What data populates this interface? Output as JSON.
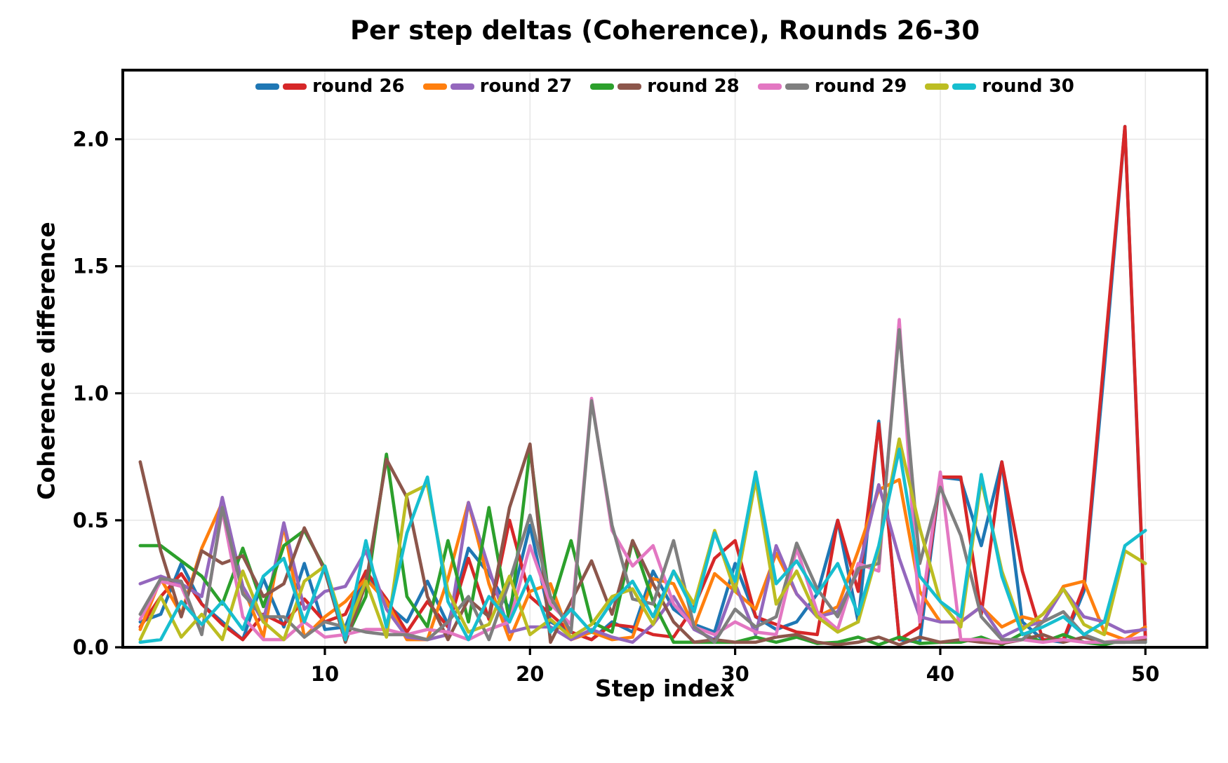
{
  "figure": {
    "title": "Per step deltas (Coherence), Rounds 26-30",
    "xlabel": "Step index",
    "ylabel": "Coherence difference"
  },
  "chart_data": {
    "type": "line",
    "title": "Per step deltas (Coherence), Rounds 26-30",
    "xlabel": "Step index",
    "ylabel": "Coherence difference",
    "grid": true,
    "legend_position": "upper center, single row, frameless",
    "x_ticks": [
      10,
      20,
      30,
      40,
      50
    ],
    "y_ticks": [
      0.0,
      0.5,
      1.0,
      1.5,
      2.0
    ],
    "xlim": [
      0.15,
      53.0
    ],
    "ylim": [
      0.0,
      2.272
    ],
    "x_start_step": 1,
    "x_end_step": 50,
    "legend": [
      {
        "label": "round 26",
        "colors": [
          "#1f77b4",
          "#d62728"
        ]
      },
      {
        "label": "round 27",
        "colors": [
          "#ff7f0e",
          "#9467bd"
        ]
      },
      {
        "label": "round 28",
        "colors": [
          "#2ca02c",
          "#8c564b"
        ]
      },
      {
        "label": "round 29",
        "colors": [
          "#e377c2",
          "#7f7f7f"
        ]
      },
      {
        "label": "round 30",
        "colors": [
          "#bcbd22",
          "#17becf"
        ]
      }
    ],
    "series": [
      {
        "name": "round 26 line a",
        "color": "#1f77b4",
        "values": [
          0.1,
          0.13,
          0.33,
          0.17,
          0.1,
          0.03,
          0.27,
          0.08,
          0.33,
          0.07,
          0.08,
          0.29,
          0.17,
          0.1,
          0.26,
          0.09,
          0.39,
          0.29,
          0.15,
          0.48,
          0.1,
          0.06,
          0.03,
          0.1,
          0.06,
          0.3,
          0.15,
          0.09,
          0.06,
          0.33,
          0.12,
          0.07,
          0.1,
          0.21,
          0.5,
          0.1,
          0.89,
          0.03,
          0.02,
          0.67,
          0.66,
          0.4,
          0.73,
          0.1,
          0.03,
          0.02,
          0.22,
          1.1,
          2.05,
          0.02
        ]
      },
      {
        "name": "round 26 line b",
        "color": "#d62728",
        "values": [
          0.08,
          0.2,
          0.29,
          0.17,
          0.09,
          0.03,
          0.13,
          0.09,
          0.19,
          0.1,
          0.13,
          0.3,
          0.19,
          0.06,
          0.18,
          0.08,
          0.35,
          0.11,
          0.5,
          0.2,
          0.13,
          0.06,
          0.03,
          0.09,
          0.08,
          0.05,
          0.04,
          0.16,
          0.35,
          0.42,
          0.12,
          0.09,
          0.06,
          0.05,
          0.5,
          0.22,
          0.88,
          0.03,
          0.08,
          0.67,
          0.67,
          0.13,
          0.73,
          0.3,
          0.03,
          0.03,
          0.24,
          1.15,
          2.05,
          0.04
        ]
      },
      {
        "name": "round 27 line a",
        "color": "#ff7f0e",
        "values": [
          0.07,
          0.27,
          0.13,
          0.39,
          0.57,
          0.24,
          0.04,
          0.48,
          0.04,
          0.12,
          0.18,
          0.27,
          0.18,
          0.03,
          0.03,
          0.27,
          0.57,
          0.25,
          0.03,
          0.22,
          0.25,
          0.03,
          0.06,
          0.03,
          0.04,
          0.27,
          0.25,
          0.08,
          0.29,
          0.22,
          0.15,
          0.37,
          0.21,
          0.12,
          0.16,
          0.38,
          0.62,
          0.66,
          0.22,
          0.1,
          0.1,
          0.16,
          0.08,
          0.12,
          0.1,
          0.24,
          0.26,
          0.06,
          0.03,
          0.08
        ]
      },
      {
        "name": "round 27 line b",
        "color": "#9467bd",
        "values": [
          0.25,
          0.28,
          0.25,
          0.2,
          0.59,
          0.24,
          0.1,
          0.49,
          0.15,
          0.22,
          0.24,
          0.38,
          0.15,
          0.04,
          0.03,
          0.05,
          0.57,
          0.31,
          0.06,
          0.08,
          0.08,
          0.03,
          0.07,
          0.04,
          0.02,
          0.09,
          0.2,
          0.07,
          0.03,
          0.25,
          0.05,
          0.4,
          0.21,
          0.12,
          0.14,
          0.3,
          0.64,
          0.35,
          0.12,
          0.1,
          0.1,
          0.16,
          0.04,
          0.08,
          0.1,
          0.23,
          0.12,
          0.1,
          0.06,
          0.07
        ]
      },
      {
        "name": "round 28 line a",
        "color": "#2ca02c",
        "values": [
          0.4,
          0.4,
          0.34,
          0.28,
          0.17,
          0.39,
          0.16,
          0.4,
          0.46,
          0.31,
          0.03,
          0.2,
          0.76,
          0.2,
          0.08,
          0.42,
          0.1,
          0.55,
          0.1,
          0.78,
          0.15,
          0.42,
          0.1,
          0.06,
          0.42,
          0.18,
          0.02,
          0.02,
          0.02,
          0.02,
          0.04,
          0.02,
          0.04,
          0.015,
          0.02,
          0.04,
          0.01,
          0.04,
          0.015,
          0.02,
          0.02,
          0.04,
          0.01,
          0.055,
          0.02,
          0.05,
          0.02,
          0.01,
          0.03,
          0.02
        ]
      },
      {
        "name": "round 28 line b",
        "color": "#8c564b",
        "values": [
          0.73,
          0.38,
          0.12,
          0.38,
          0.33,
          0.36,
          0.2,
          0.25,
          0.47,
          0.3,
          0.02,
          0.25,
          0.74,
          0.59,
          0.2,
          0.03,
          0.19,
          0.12,
          0.55,
          0.8,
          0.02,
          0.18,
          0.34,
          0.13,
          0.42,
          0.25,
          0.1,
          0.02,
          0.03,
          0.02,
          0.02,
          0.04,
          0.05,
          0.02,
          0.01,
          0.02,
          0.04,
          0.01,
          0.04,
          0.02,
          0.03,
          0.02,
          0.015,
          0.03,
          0.05,
          0.02,
          0.04,
          0.02,
          0.02,
          0.03
        ]
      },
      {
        "name": "round 29 line a",
        "color": "#e377c2",
        "values": [
          0.11,
          0.26,
          0.24,
          0.055,
          0.54,
          0.12,
          0.03,
          0.03,
          0.1,
          0.04,
          0.05,
          0.07,
          0.07,
          0.05,
          0.07,
          0.06,
          0.03,
          0.07,
          0.1,
          0.4,
          0.17,
          0.09,
          0.98,
          0.46,
          0.32,
          0.4,
          0.17,
          0.08,
          0.05,
          0.1,
          0.06,
          0.05,
          0.39,
          0.14,
          0.07,
          0.33,
          0.3,
          1.29,
          0.1,
          0.69,
          0.03,
          0.03,
          0.02,
          0.03,
          0.02,
          0.03,
          0.02,
          0.02,
          0.03,
          0.04
        ]
      },
      {
        "name": "round 29 line b",
        "color": "#7f7f7f",
        "values": [
          0.13,
          0.27,
          0.26,
          0.05,
          0.55,
          0.21,
          0.12,
          0.12,
          0.04,
          0.1,
          0.08,
          0.06,
          0.05,
          0.05,
          0.03,
          0.1,
          0.2,
          0.03,
          0.26,
          0.52,
          0.2,
          0.06,
          0.97,
          0.48,
          0.19,
          0.17,
          0.42,
          0.08,
          0.02,
          0.15,
          0.08,
          0.12,
          0.41,
          0.23,
          0.12,
          0.31,
          0.33,
          1.25,
          0.33,
          0.63,
          0.44,
          0.12,
          0.03,
          0.03,
          0.1,
          0.14,
          0.05,
          0.02,
          0.02,
          0.02
        ]
      },
      {
        "name": "round 30 line a",
        "color": "#bcbd22",
        "values": [
          0.03,
          0.2,
          0.04,
          0.13,
          0.03,
          0.3,
          0.1,
          0.03,
          0.26,
          0.32,
          0.06,
          0.26,
          0.04,
          0.6,
          0.64,
          0.22,
          0.06,
          0.09,
          0.28,
          0.05,
          0.11,
          0.04,
          0.09,
          0.2,
          0.23,
          0.09,
          0.3,
          0.17,
          0.46,
          0.22,
          0.66,
          0.17,
          0.3,
          0.12,
          0.06,
          0.1,
          0.39,
          0.82,
          0.47,
          0.18,
          0.08,
          0.66,
          0.3,
          0.07,
          0.13,
          0.23,
          0.09,
          0.05,
          0.38,
          0.33
        ]
      },
      {
        "name": "round 30 line b",
        "color": "#17becf",
        "values": [
          0.02,
          0.03,
          0.18,
          0.09,
          0.18,
          0.07,
          0.28,
          0.35,
          0.1,
          0.32,
          0.03,
          0.42,
          0.08,
          0.45,
          0.67,
          0.18,
          0.03,
          0.2,
          0.1,
          0.28,
          0.06,
          0.15,
          0.06,
          0.18,
          0.26,
          0.12,
          0.3,
          0.14,
          0.45,
          0.26,
          0.69,
          0.25,
          0.34,
          0.21,
          0.33,
          0.13,
          0.4,
          0.78,
          0.28,
          0.18,
          0.12,
          0.68,
          0.28,
          0.05,
          0.08,
          0.12,
          0.05,
          0.1,
          0.4,
          0.46
        ]
      }
    ]
  },
  "style": {
    "background": "#ffffff",
    "spine_color": "#000000",
    "grid_color": "#e7e7e7",
    "tick_label_color": "#000000"
  }
}
